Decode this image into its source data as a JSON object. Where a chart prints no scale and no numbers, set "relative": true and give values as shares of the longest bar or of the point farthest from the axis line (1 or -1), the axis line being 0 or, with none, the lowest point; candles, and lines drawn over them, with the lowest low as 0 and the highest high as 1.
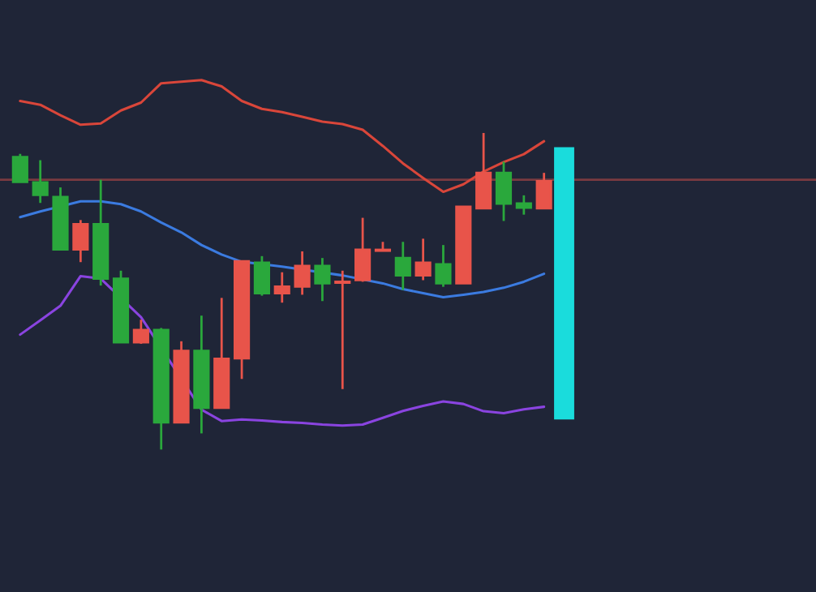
{
  "chart_data": {
    "type": "candlestick",
    "relative": true,
    "categories": [
      null,
      null,
      null,
      null,
      null,
      null,
      null,
      null,
      null,
      null,
      null,
      null,
      null,
      null,
      null,
      null,
      null,
      null,
      null,
      null,
      null,
      null,
      null,
      null,
      null,
      null,
      null,
      null
    ],
    "ohlc": [
      [
        0.924,
        0.934,
        0.845,
        0.845
      ],
      [
        0.844,
        0.914,
        0.779,
        0.804
      ],
      [
        0.798,
        0.828,
        0.632,
        0.632
      ],
      [
        0.632,
        0.725,
        0.592,
        0.712
      ],
      [
        0.712,
        0.852,
        0.518,
        0.54
      ],
      [
        0.54,
        0.565,
        0.339,
        0.339
      ],
      [
        0.339,
        0.41,
        0.334,
        0.378
      ],
      [
        0.378,
        0.384,
        0,
        0.086
      ],
      [
        0.086,
        0.342,
        0.086,
        0.312
      ],
      [
        0.312,
        0.423,
        0.051,
        0.132
      ],
      [
        0.132,
        0.479,
        0.132,
        0.287
      ],
      [
        0.288,
        0.595,
        0.223,
        0.595
      ],
      [
        0.59,
        0.611,
        0.486,
        0.494
      ],
      [
        0.494,
        0.56,
        0.464,
        0.515
      ],
      [
        0.515,
        0.626,
        0.489,
        0.58
      ],
      [
        0.58,
        0.605,
        0.469,
        0.525
      ],
      [
        0.527,
        0.565,
        0.191,
        0.53
      ],
      [
        0.535,
        0.732,
        0.53,
        0.631
      ],
      [
        0.628,
        0.656,
        0.628,
        0.631
      ],
      [
        0.605,
        0.656,
        0.504,
        0.55
      ],
      [
        0.55,
        0.666,
        0.535,
        0.59
      ],
      [
        0.585,
        0.646,
        0.514,
        0.525
      ],
      [
        0.525,
        0.767,
        0.525,
        0.767
      ],
      [
        0.762,
        1,
        0.762,
        0.874
      ],
      [
        0.874,
        0.909,
        0.722,
        0.777
      ],
      [
        0.777,
        0.803,
        0.742,
        0.764
      ],
      [
        0.762,
        0.874,
        0.762,
        0.848
      ],
      null
    ],
    "colors": [
      "#2aa83c",
      "#2aa83c",
      "#2aa83c",
      "#e8544a",
      "#2aa83c",
      "#2aa83c",
      "#e8544a",
      "#2aa83c",
      "#e8544a",
      "#2aa83c",
      "#e8544a",
      "#e8544a",
      "#2aa83c",
      "#e8544a",
      "#e8544a",
      "#2aa83c",
      "#e8544a",
      "#e8544a",
      "#e8544a",
      "#2aa83c",
      "#e8544a",
      "#2aa83c",
      "#e8544a",
      "#e8544a",
      "#2aa83c",
      "#2aa83c",
      "#e8544a",
      null
    ],
    "series": [
      {
        "type": "line",
        "color": "#d9463a",
        "values": [
          1.101,
          1.089,
          1.056,
          1.026,
          1.03,
          1.071,
          1.096,
          1.157,
          1.162,
          1.167,
          1.147,
          1.101,
          1.076,
          1.066,
          1.051,
          1.036,
          1.028,
          1.01,
          0.959,
          0.904,
          0.858,
          0.814,
          0.838,
          0.878,
          0.908,
          0.933,
          0.974,
          null
        ]
      },
      {
        "type": "line",
        "color": "#3b7be0",
        "values": [
          0.734,
          0.752,
          null,
          0.784,
          0.784,
          0.775,
          0.752,
          0.717,
          0.686,
          0.646,
          0.616,
          0.593,
          null,
          0.578,
          null,
          null,
          0.55,
          null,
          0.525,
          0.507,
          0.494,
          0.481,
          0.489,
          0.498,
          0.511,
          0.53,
          0.555,
          null
        ]
      },
      {
        "type": "line",
        "color": "#8a44e0",
        "values": [
          0.363,
          0.408,
          0.454,
          0.548,
          0.54,
          null,
          0.418,
          null,
          null,
          0.126,
          0.09,
          0.095,
          0.092,
          0.087,
          0.084,
          0.079,
          0.076,
          0.079,
          0.1,
          0.122,
          0.138,
          0.152,
          0.144,
          0.121,
          0.115,
          0.127,
          0.135,
          null
        ]
      },
      {
        "type": "bar",
        "color": "#1adcdc",
        "base": [
          null,
          null,
          null,
          null,
          null,
          null,
          null,
          null,
          null,
          null,
          null,
          null,
          null,
          null,
          null,
          null,
          null,
          null,
          null,
          null,
          null,
          null,
          null,
          null,
          null,
          null,
          null,
          0.095
        ],
        "values": [
          null,
          null,
          null,
          null,
          null,
          null,
          null,
          null,
          null,
          null,
          null,
          null,
          null,
          null,
          null,
          null,
          null,
          null,
          null,
          null,
          null,
          null,
          null,
          null,
          null,
          null,
          null,
          0.86
        ]
      }
    ],
    "ref_lines": [
      {
        "axis": "y",
        "value": 0.852,
        "color": "#7a3a40"
      }
    ]
  }
}
